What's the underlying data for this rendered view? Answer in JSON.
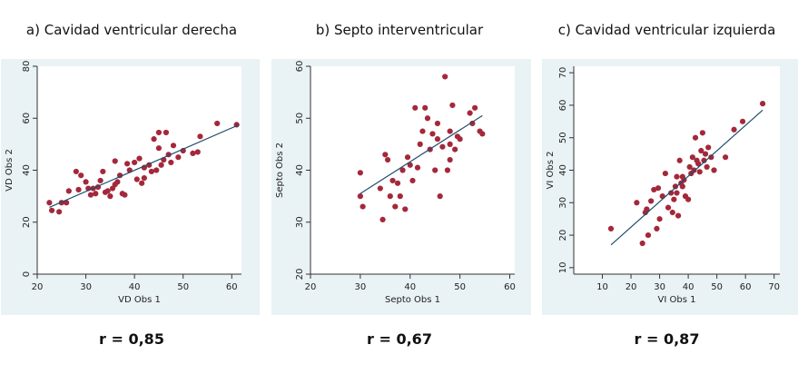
{
  "chart_data": [
    {
      "type": "scatter",
      "title": "a) Cavidad ventricular derecha",
      "xlabel": "VD Obs 1",
      "ylabel": "VD Obs 2",
      "xlim": [
        20,
        62
      ],
      "ylim": [
        0,
        80
      ],
      "xticks": [
        20,
        30,
        40,
        50,
        60
      ],
      "yticks": [
        0,
        20,
        40,
        60,
        80
      ],
      "correlation_label": "r = 0,85",
      "fit_line": [
        [
          22.5,
          25.7
        ],
        [
          61.5,
          57.5
        ]
      ],
      "points": [
        [
          22.5,
          27.5
        ],
        [
          23,
          24.5
        ],
        [
          24.5,
          24
        ],
        [
          25,
          27.5
        ],
        [
          26,
          27.5
        ],
        [
          26.5,
          32
        ],
        [
          28,
          39.5
        ],
        [
          28.5,
          32.5
        ],
        [
          29,
          38
        ],
        [
          30,
          35.5
        ],
        [
          30.5,
          33
        ],
        [
          31,
          30.5
        ],
        [
          31.5,
          33
        ],
        [
          32,
          31
        ],
        [
          32.5,
          33.5
        ],
        [
          33,
          36
        ],
        [
          33.5,
          39.5
        ],
        [
          34,
          31.5
        ],
        [
          34.5,
          32
        ],
        [
          35,
          30
        ],
        [
          35.5,
          33
        ],
        [
          36,
          34.5
        ],
        [
          36.5,
          35.5
        ],
        [
          36,
          43.5
        ],
        [
          37,
          38
        ],
        [
          37.5,
          31
        ],
        [
          38,
          30.5
        ],
        [
          38.5,
          42.5
        ],
        [
          39,
          40
        ],
        [
          40,
          43
        ],
        [
          40.5,
          36.5
        ],
        [
          41,
          44.5
        ],
        [
          41.5,
          35
        ],
        [
          42,
          37
        ],
        [
          43,
          42
        ],
        [
          43.5,
          39.5
        ],
        [
          44,
          52
        ],
        [
          44.5,
          40
        ],
        [
          45,
          54.5
        ],
        [
          45.5,
          42
        ],
        [
          46,
          44
        ],
        [
          46.5,
          54.5
        ],
        [
          47,
          46
        ],
        [
          47.5,
          43
        ],
        [
          48,
          49.5
        ],
        [
          49,
          45
        ],
        [
          50,
          47.5
        ],
        [
          52,
          46.5
        ],
        [
          53,
          47
        ],
        [
          53.5,
          53
        ],
        [
          57,
          58
        ],
        [
          61,
          57.5
        ],
        [
          45,
          48.5
        ],
        [
          42,
          41
        ]
      ]
    },
    {
      "type": "scatter",
      "title": "b) Septo interventricular",
      "xlabel": "Septo Obs 1",
      "ylabel": "Septo Obs 2",
      "xlim": [
        20,
        61
      ],
      "ylim": [
        20,
        60
      ],
      "xticks": [
        20,
        30,
        40,
        50,
        60
      ],
      "yticks": [
        20,
        30,
        40,
        50,
        60
      ],
      "correlation_label": "r = 0,67",
      "fit_line": [
        [
          30,
          35.5
        ],
        [
          54.5,
          50.5
        ]
      ],
      "points": [
        [
          30,
          39.5
        ],
        [
          30,
          35
        ],
        [
          30.5,
          33
        ],
        [
          34,
          36.5
        ],
        [
          34.5,
          30.5
        ],
        [
          35,
          43
        ],
        [
          35.5,
          42
        ],
        [
          36,
          35
        ],
        [
          36.5,
          38
        ],
        [
          37,
          33
        ],
        [
          37.5,
          37.5
        ],
        [
          38,
          35
        ],
        [
          38.5,
          40
        ],
        [
          39,
          32.5
        ],
        [
          39.5,
          42.5
        ],
        [
          40,
          41
        ],
        [
          40.5,
          38
        ],
        [
          41,
          52
        ],
        [
          41.5,
          40.5
        ],
        [
          42,
          45
        ],
        [
          42.5,
          47.5
        ],
        [
          43,
          52
        ],
        [
          43.5,
          50
        ],
        [
          44,
          44
        ],
        [
          44.5,
          47
        ],
        [
          45,
          40
        ],
        [
          45.5,
          49
        ],
        [
          45.5,
          46
        ],
        [
          46,
          35
        ],
        [
          46.5,
          44.5
        ],
        [
          47,
          58
        ],
        [
          47.5,
          40
        ],
        [
          48,
          42
        ],
        [
          48,
          47.5
        ],
        [
          48.5,
          52.5
        ],
        [
          49,
          44
        ],
        [
          49.5,
          46.5
        ],
        [
          50,
          46
        ],
        [
          52,
          51
        ],
        [
          52.5,
          49
        ],
        [
          53,
          52
        ],
        [
          54,
          47.5
        ],
        [
          54.5,
          47
        ],
        [
          48,
          45
        ]
      ]
    },
    {
      "type": "scatter",
      "title": "c) Cavidad ventricular izquierda",
      "xlabel": "VI Obs 1",
      "ylabel": "VI Obs 2",
      "xlim": [
        0,
        72
      ],
      "ylim": [
        8,
        72
      ],
      "xticks": [
        10,
        20,
        30,
        40,
        50,
        60,
        70
      ],
      "yticks": [
        10,
        20,
        30,
        40,
        50,
        60,
        70
      ],
      "correlation_label": "r = 0,87",
      "fit_line": [
        [
          13,
          17
        ],
        [
          66,
          58.5
        ]
      ],
      "points": [
        [
          13,
          22
        ],
        [
          22,
          30
        ],
        [
          24,
          17.5
        ],
        [
          25,
          27
        ],
        [
          25.5,
          28
        ],
        [
          26,
          20
        ],
        [
          27,
          30.5
        ],
        [
          28,
          34
        ],
        [
          29,
          22
        ],
        [
          29.5,
          34.5
        ],
        [
          30,
          25
        ],
        [
          31,
          32
        ],
        [
          32,
          39
        ],
        [
          33,
          28.5
        ],
        [
          34,
          33
        ],
        [
          34.5,
          27
        ],
        [
          35,
          31
        ],
        [
          35.5,
          35
        ],
        [
          36,
          38
        ],
        [
          36.5,
          26
        ],
        [
          37,
          43
        ],
        [
          37.5,
          36
        ],
        [
          38,
          38
        ],
        [
          38.5,
          37
        ],
        [
          39,
          32
        ],
        [
          40,
          31
        ],
        [
          40.5,
          41
        ],
        [
          41,
          39
        ],
        [
          41.5,
          44
        ],
        [
          42,
          40
        ],
        [
          42.5,
          50
        ],
        [
          43,
          43
        ],
        [
          43.5,
          42
        ],
        [
          44,
          39.5
        ],
        [
          44.5,
          46
        ],
        [
          45,
          51.5
        ],
        [
          45.5,
          43
        ],
        [
          46,
          45
        ],
        [
          46.5,
          41
        ],
        [
          47,
          47
        ],
        [
          48,
          44
        ],
        [
          49,
          40
        ],
        [
          53,
          44
        ],
        [
          56,
          52.5
        ],
        [
          59,
          55
        ],
        [
          66,
          60.5
        ],
        [
          38,
          35
        ],
        [
          36,
          33
        ]
      ]
    }
  ]
}
